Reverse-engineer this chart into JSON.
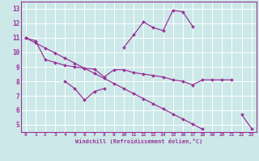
{
  "xlabel": "Windchill (Refroidissement éolien,°C)",
  "line_color": "#993399",
  "bg_color": "#cce8e8",
  "grid_color": "#ffffff",
  "xlim": [
    -0.5,
    23.5
  ],
  "ylim": [
    4.5,
    13.5
  ],
  "yticks": [
    5,
    6,
    7,
    8,
    9,
    10,
    11,
    12,
    13
  ],
  "xticks": [
    0,
    1,
    2,
    3,
    4,
    5,
    6,
    7,
    8,
    9,
    10,
    11,
    12,
    13,
    14,
    15,
    16,
    17,
    18,
    19,
    20,
    21,
    22,
    23
  ],
  "series": [
    {
      "x": [
        0,
        1,
        2,
        3,
        4,
        5,
        6,
        7,
        8,
        9,
        10,
        11,
        12,
        13,
        14,
        15,
        16,
        17,
        18,
        19,
        20,
        21,
        22,
        23
      ],
      "y": [
        11.0,
        10.65,
        10.3,
        9.95,
        9.6,
        9.25,
        8.9,
        8.55,
        8.2,
        7.85,
        7.5,
        7.15,
        6.8,
        6.45,
        6.1,
        5.75,
        5.4,
        5.05,
        4.7,
        null,
        null,
        null,
        null,
        null
      ]
    },
    {
      "x": [
        0,
        1,
        2,
        3,
        4,
        5,
        6,
        7,
        8,
        9,
        10,
        11,
        12,
        13,
        14,
        15,
        16,
        17,
        18,
        19,
        20,
        21,
        22,
        23
      ],
      "y": [
        11.0,
        null,
        null,
        null,
        8.0,
        7.5,
        6.7,
        7.3,
        7.5,
        null,
        10.35,
        11.2,
        12.1,
        11.7,
        11.5,
        12.9,
        12.8,
        11.8,
        null,
        null,
        null,
        null,
        5.7,
        4.75
      ]
    },
    {
      "x": [
        0,
        1,
        2,
        3,
        4,
        5,
        6,
        7,
        8,
        9,
        10,
        11,
        12,
        13,
        14,
        15,
        16,
        17,
        18,
        19,
        20,
        21,
        22,
        23
      ],
      "y": [
        11.0,
        10.8,
        9.5,
        9.3,
        9.1,
        9.0,
        8.9,
        8.85,
        8.3,
        8.8,
        8.8,
        8.6,
        8.5,
        8.4,
        8.3,
        8.1,
        8.0,
        7.75,
        8.1,
        8.1,
        8.1,
        8.1,
        null,
        null
      ]
    }
  ]
}
